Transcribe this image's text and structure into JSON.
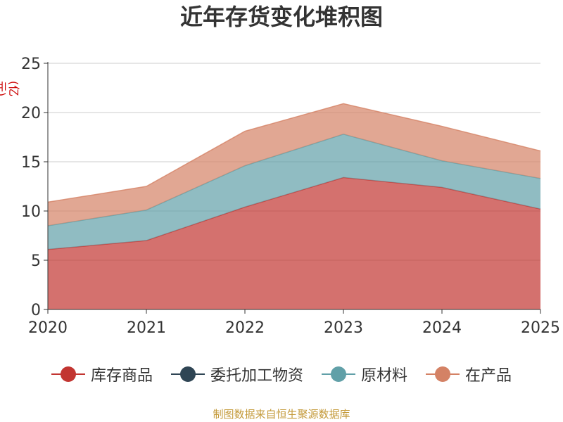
{
  "chart_data": {
    "type": "area",
    "stacked": true,
    "title": "近年存货变化堆积图",
    "ylabel": "(亿元)",
    "x": [
      "2020",
      "2021",
      "2022",
      "2023",
      "2024",
      "2025"
    ],
    "ylim": [
      0,
      25
    ],
    "yticks": [
      "0",
      "5",
      "10",
      "15",
      "20",
      "25"
    ],
    "grid": true,
    "legend_position": "bottom",
    "series": [
      {
        "name": "库存商品",
        "values": [
          6.1,
          7.0,
          10.4,
          13.4,
          12.4,
          10.2
        ],
        "color": "#c23531"
      },
      {
        "name": "委托加工物资",
        "values": [
          0,
          0,
          0,
          0,
          0,
          0
        ],
        "color": "#2f4554"
      },
      {
        "name": "原材料",
        "values": [
          2.4,
          3.1,
          4.2,
          4.4,
          2.7,
          3.1
        ],
        "color": "#61a0a8"
      },
      {
        "name": "在产品",
        "values": [
          2.4,
          2.4,
          3.5,
          3.1,
          3.5,
          2.8
        ],
        "color": "#d48265"
      }
    ]
  },
  "source": "制图数据来自恒生聚源数据库"
}
